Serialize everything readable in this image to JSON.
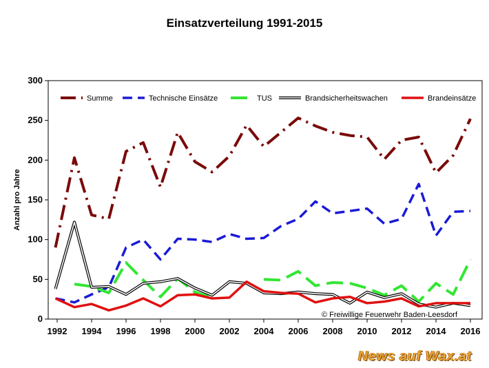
{
  "chart_data": {
    "type": "line",
    "title": "Einsatzverteilung 1991-2015",
    "ylabel": "Anzahl pro Jahre",
    "xlabel": "",
    "ylim": [
      0,
      300
    ],
    "yticks": [
      0,
      50,
      100,
      150,
      200,
      250,
      300
    ],
    "xlim": [
      1992,
      2016
    ],
    "xticks": [
      1992,
      1994,
      1996,
      1998,
      2000,
      2002,
      2004,
      2006,
      2008,
      2010,
      2012,
      2014,
      2016
    ],
    "x": [
      1991.9,
      1993,
      1994,
      1995,
      1996,
      1997,
      1998,
      1999,
      2000,
      2001,
      2002,
      2003,
      2004,
      2005,
      2006,
      2007,
      2008,
      2009,
      2010,
      2011,
      2012,
      2013,
      2014,
      2015,
      2016
    ],
    "grid": false,
    "legend_position": "top",
    "series": [
      {
        "name": "Summe",
        "color": "#7a0a0a",
        "dash": "dashdot",
        "values": [
          90,
          203,
          131,
          126,
          211,
          222,
          166,
          235,
          198,
          185,
          205,
          244,
          217,
          235,
          253,
          243,
          235,
          231,
          229,
          201,
          225,
          229,
          184,
          206,
          252
        ]
      },
      {
        "name": "Technische Einsätze",
        "color": "#1a1ad6",
        "dash": "dash",
        "values": [
          26,
          21,
          31,
          40,
          90,
          100,
          75,
          101,
          100,
          97,
          107,
          101,
          102,
          117,
          126,
          148,
          133,
          136,
          139,
          120,
          126,
          170,
          105,
          135,
          136
        ]
      },
      {
        "name": "TUS",
        "color": "#33e633",
        "dash": "longdash",
        "values": [
          null,
          44,
          41,
          33,
          71,
          49,
          28,
          51,
          34,
          27,
          null,
          null,
          50,
          49,
          60,
          42,
          46,
          45,
          39,
          30,
          42,
          22,
          45,
          31,
          75
        ]
      },
      {
        "name": "Brandsicherheitswachen",
        "color": "#000000",
        "dash": "double",
        "values": [
          38,
          122,
          40,
          41,
          31,
          45,
          47,
          51,
          39,
          30,
          47,
          45,
          33,
          32,
          34,
          32,
          31,
          20,
          34,
          27,
          32,
          19,
          15,
          20,
          17
        ]
      },
      {
        "name": "Brandeinsätze",
        "color": "#e01010",
        "dash": "solid",
        "values": [
          26,
          15,
          19,
          11,
          17,
          26,
          16,
          30,
          31,
          26,
          27,
          47,
          35,
          33,
          32,
          21,
          26,
          28,
          20,
          22,
          26,
          16,
          20,
          20,
          20
        ]
      }
    ],
    "annotation": "© Freiwillige Feuerwehr Baden-Leesdorf",
    "watermark": "News auf Wax.at"
  }
}
